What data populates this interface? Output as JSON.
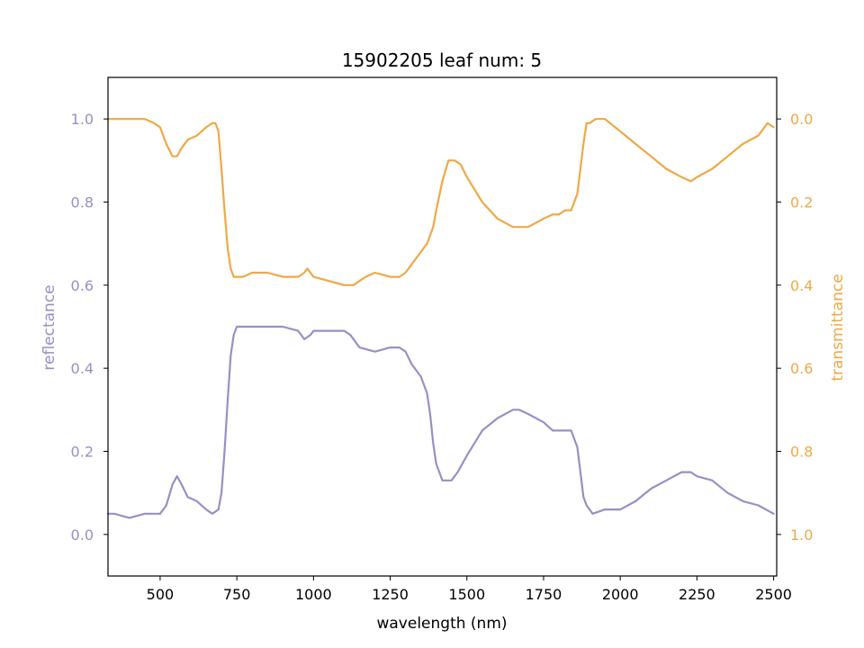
{
  "chart_data": {
    "type": "line",
    "title": "15902205 leaf num: 5",
    "xlabel": "wavelength (nm)",
    "ylabel_left": "reflectance",
    "ylabel_right": "transmittance",
    "xlim": [
      330,
      2510
    ],
    "ylim_left": [
      -0.1,
      1.1
    ],
    "ylim_right_inverted": [
      1.1,
      -0.1
    ],
    "x_ticks": [
      500,
      750,
      1000,
      1250,
      1500,
      1750,
      2000,
      2250,
      2500
    ],
    "y_ticks_left": [
      0.0,
      0.2,
      0.4,
      0.6,
      0.8,
      1.0
    ],
    "y_ticks_right": [
      0.0,
      0.2,
      0.4,
      0.6,
      0.8,
      1.0
    ],
    "x_tick_labels": [
      "500",
      "750",
      "1000",
      "1250",
      "1500",
      "1750",
      "2000",
      "2250",
      "2500"
    ],
    "y_tick_labels_left": [
      "0.0",
      "0.2",
      "0.4",
      "0.6",
      "0.8",
      "1.0"
    ],
    "y_tick_labels_right": [
      "0.0",
      "0.2",
      "0.4",
      "0.6",
      "0.8",
      "1.0"
    ],
    "grid": false,
    "colors": {
      "reflectance": "#9591c4",
      "transmittance": "#eea847",
      "axes": "#000000"
    },
    "series": [
      {
        "axis": "left",
        "x": [
          330,
          350,
          400,
          450,
          500,
          520,
          540,
          555,
          570,
          590,
          620,
          650,
          670,
          690,
          700,
          710,
          720,
          730,
          740,
          750,
          760,
          800,
          850,
          900,
          950,
          970,
          990,
          1000,
          1020,
          1050,
          1080,
          1100,
          1120,
          1150,
          1200,
          1250,
          1280,
          1300,
          1320,
          1350,
          1370,
          1380,
          1390,
          1400,
          1420,
          1450,
          1470,
          1500,
          1550,
          1600,
          1650,
          1670,
          1700,
          1750,
          1780,
          1800,
          1820,
          1840,
          1860,
          1870,
          1880,
          1890,
          1900,
          1910,
          1950,
          2000,
          2050,
          2100,
          2150,
          2200,
          2230,
          2250,
          2300,
          2350,
          2400,
          2450,
          2500
        ],
        "y": [
          0.05,
          0.05,
          0.04,
          0.05,
          0.05,
          0.07,
          0.12,
          0.14,
          0.12,
          0.09,
          0.08,
          0.06,
          0.05,
          0.06,
          0.1,
          0.2,
          0.32,
          0.43,
          0.48,
          0.5,
          0.5,
          0.5,
          0.5,
          0.5,
          0.49,
          0.47,
          0.48,
          0.49,
          0.49,
          0.49,
          0.49,
          0.49,
          0.48,
          0.45,
          0.44,
          0.45,
          0.45,
          0.44,
          0.41,
          0.38,
          0.34,
          0.29,
          0.22,
          0.17,
          0.13,
          0.13,
          0.15,
          0.19,
          0.25,
          0.28,
          0.3,
          0.3,
          0.29,
          0.27,
          0.25,
          0.25,
          0.25,
          0.25,
          0.21,
          0.15,
          0.09,
          0.07,
          0.06,
          0.05,
          0.06,
          0.06,
          0.08,
          0.11,
          0.13,
          0.15,
          0.15,
          0.14,
          0.13,
          0.1,
          0.08,
          0.07,
          0.05
        ]
      },
      {
        "axis": "right",
        "x": [
          330,
          350,
          400,
          450,
          480,
          500,
          520,
          540,
          555,
          570,
          590,
          620,
          650,
          670,
          680,
          690,
          700,
          710,
          720,
          730,
          740,
          750,
          770,
          800,
          850,
          900,
          950,
          970,
          980,
          1000,
          1050,
          1100,
          1130,
          1150,
          1170,
          1200,
          1250,
          1280,
          1300,
          1320,
          1340,
          1370,
          1390,
          1400,
          1420,
          1440,
          1460,
          1480,
          1500,
          1550,
          1600,
          1650,
          1670,
          1700,
          1750,
          1780,
          1800,
          1820,
          1840,
          1860,
          1870,
          1880,
          1890,
          1900,
          1920,
          1950,
          2000,
          2050,
          2100,
          2150,
          2200,
          2230,
          2250,
          2300,
          2350,
          2400,
          2450,
          2480,
          2500
        ],
        "y": [
          0.0,
          0.0,
          0.0,
          0.0,
          0.01,
          0.02,
          0.06,
          0.09,
          0.09,
          0.07,
          0.05,
          0.04,
          0.02,
          0.01,
          0.01,
          0.03,
          0.12,
          0.22,
          0.31,
          0.36,
          0.38,
          0.38,
          0.38,
          0.37,
          0.37,
          0.38,
          0.38,
          0.37,
          0.36,
          0.38,
          0.39,
          0.4,
          0.4,
          0.39,
          0.38,
          0.37,
          0.38,
          0.38,
          0.37,
          0.35,
          0.33,
          0.3,
          0.26,
          0.22,
          0.15,
          0.1,
          0.1,
          0.11,
          0.14,
          0.2,
          0.24,
          0.26,
          0.26,
          0.26,
          0.24,
          0.23,
          0.23,
          0.22,
          0.22,
          0.18,
          0.12,
          0.06,
          0.01,
          0.01,
          0.0,
          0.0,
          0.03,
          0.06,
          0.09,
          0.12,
          0.14,
          0.15,
          0.14,
          0.12,
          0.09,
          0.06,
          0.04,
          0.01,
          0.02
        ]
      }
    ]
  }
}
